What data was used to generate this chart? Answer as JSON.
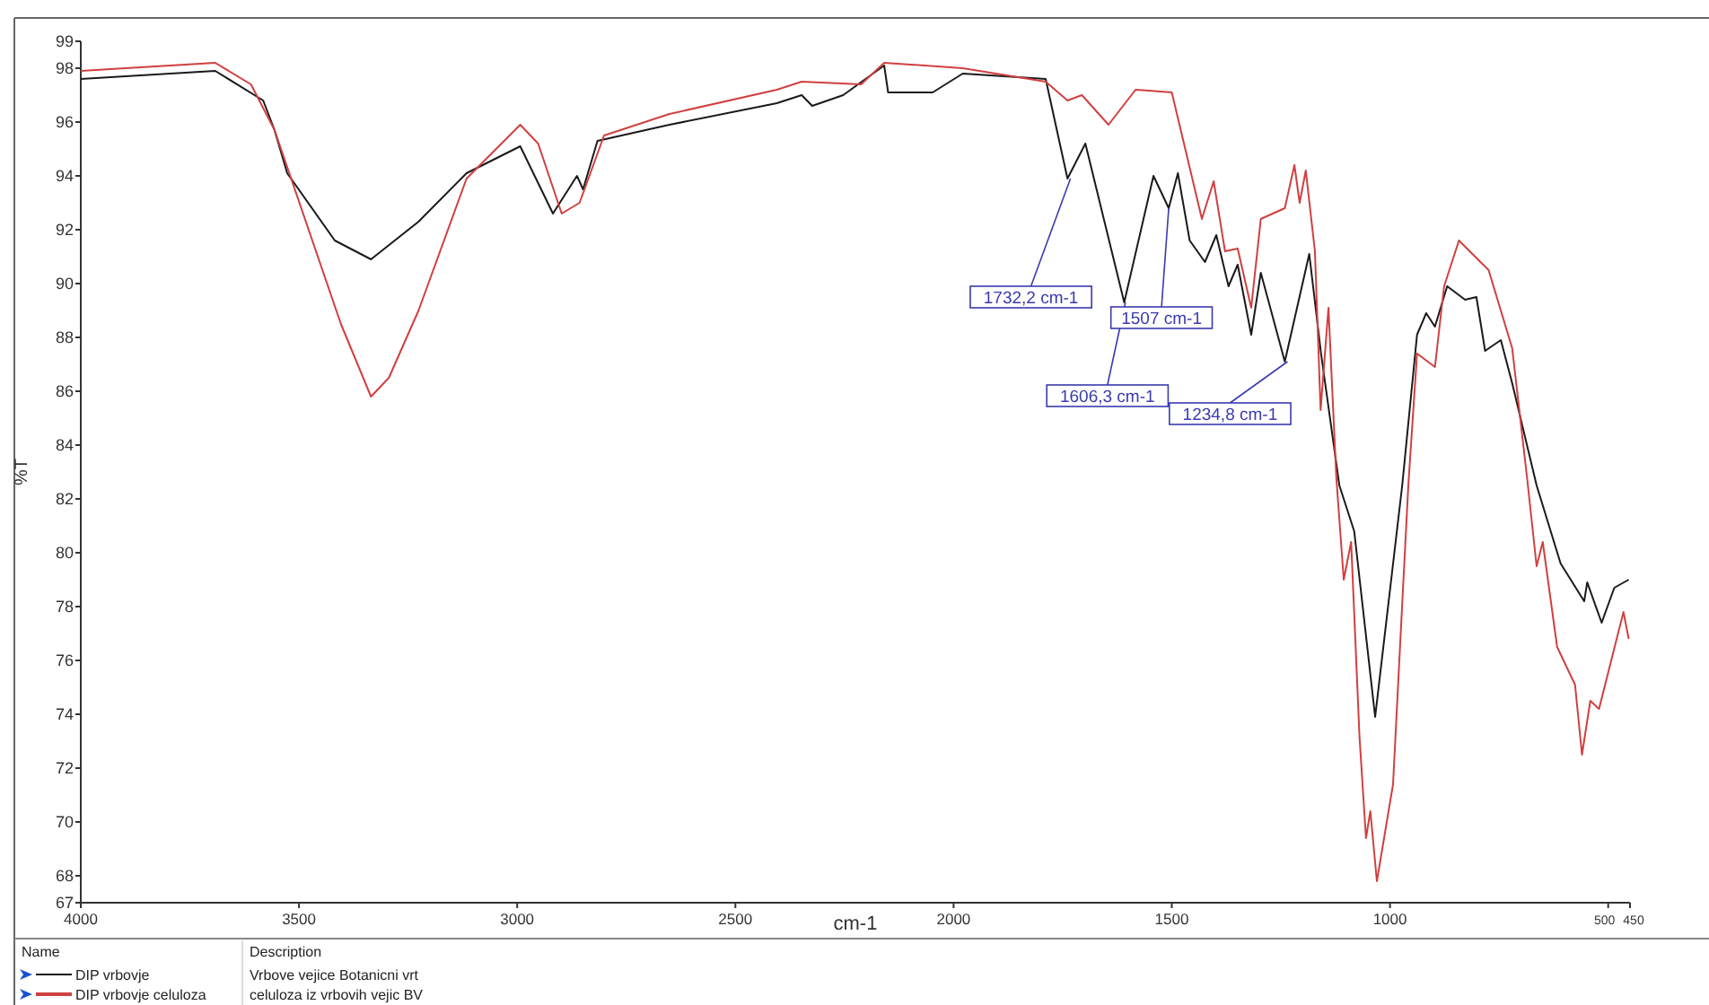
{
  "chart_data": {
    "type": "line",
    "xlabel": "cm-1",
    "ylabel": "%T",
    "legend_title": "Name",
    "legend": "bottom",
    "xlim": [
      4000,
      450
    ],
    "ylim": [
      67,
      99
    ],
    "xticks": [
      4000,
      3500,
      3000,
      2500,
      2000,
      1500,
      1000,
      500,
      450
    ],
    "yticks": [
      67,
      68,
      70,
      72,
      74,
      76,
      78,
      80,
      82,
      84,
      86,
      88,
      90,
      92,
      94,
      96,
      98,
      99
    ],
    "series": [
      {
        "name": "DIP vrbovje",
        "color": "#1a1a1a",
        "x": [
          4000,
          3692,
          3582,
          3556,
          3527,
          3418,
          3335,
          3226,
          3116,
          2993,
          2918,
          2863,
          2849,
          2816,
          2651,
          2405,
          2348,
          2324,
          2253,
          2159,
          2150,
          2048,
          1979,
          1789,
          1739,
          1698,
          1609,
          1542,
          1507,
          1486,
          1459,
          1424,
          1398,
          1370,
          1349,
          1318,
          1296,
          1241,
          1185,
          1158,
          1116,
          1082,
          1034,
          972,
          938,
          917,
          897,
          869,
          828,
          802,
          782,
          746,
          720,
          664,
          609,
          555,
          548,
          515,
          486,
          453
        ],
        "values": [
          97.6,
          97.9,
          96.8,
          95.7,
          94.1,
          91.6,
          90.9,
          92.3,
          94.1,
          95.1,
          92.6,
          94.0,
          93.5,
          95.3,
          95.9,
          96.7,
          97.0,
          96.6,
          97.0,
          98.1,
          97.1,
          97.1,
          97.8,
          97.6,
          93.9,
          95.2,
          89.3,
          94.0,
          92.8,
          94.1,
          91.6,
          90.8,
          91.8,
          89.9,
          90.7,
          88.1,
          90.4,
          87.1,
          91.1,
          87.4,
          82.5,
          80.8,
          73.9,
          82.5,
          88.1,
          88.9,
          88.4,
          89.9,
          89.4,
          89.5,
          87.5,
          87.9,
          86.3,
          82.5,
          79.6,
          78.2,
          78.9,
          77.4,
          78.7,
          79.0
        ]
      },
      {
        "name": "DIP vrbovje celuloza",
        "color": "#d04040",
        "x": [
          4000,
          3692,
          3610,
          3556,
          3404,
          3335,
          3294,
          3226,
          3116,
          2993,
          2952,
          2898,
          2857,
          2801,
          2651,
          2405,
          2348,
          2212,
          2159,
          1979,
          1789,
          1739,
          1706,
          1645,
          1583,
          1500,
          1431,
          1404,
          1378,
          1349,
          1318,
          1296,
          1241,
          1219,
          1207,
          1193,
          1172,
          1159,
          1141,
          1123,
          1106,
          1089,
          1070,
          1055,
          1045,
          1030,
          993,
          972,
          958,
          938,
          897,
          876,
          842,
          774,
          720,
          686,
          664,
          650,
          617,
          576,
          560,
          541,
          521,
          465,
          453
        ],
        "values": [
          97.9,
          98.2,
          97.4,
          95.7,
          88.5,
          85.8,
          86.5,
          89.0,
          93.9,
          95.9,
          95.2,
          92.6,
          93.0,
          95.5,
          96.3,
          97.2,
          97.5,
          97.4,
          98.2,
          98.0,
          97.5,
          96.8,
          97.0,
          95.9,
          97.2,
          97.1,
          92.4,
          93.8,
          91.2,
          91.3,
          89.1,
          92.4,
          92.8,
          94.4,
          93.0,
          94.2,
          91.2,
          85.3,
          89.1,
          82.8,
          79.0,
          80.4,
          73.2,
          69.4,
          70.4,
          67.8,
          71.4,
          78.1,
          82.5,
          87.4,
          86.9,
          89.9,
          91.6,
          90.5,
          87.6,
          82.8,
          79.5,
          80.4,
          76.5,
          75.1,
          72.5,
          74.5,
          74.2,
          77.8,
          76.8
        ]
      }
    ],
    "annotations": [
      {
        "text": "1732,2 cm-1",
        "x": 1732.2,
        "y": 93.9
      },
      {
        "text": "1606,3 cm-1",
        "x": 1606.3,
        "y": 89.3
      },
      {
        "text": "1507 cm-1",
        "x": 1507,
        "y": 92.8
      },
      {
        "text": "1234,8 cm-1",
        "x": 1234.8,
        "y": 87.1
      },
      "Description",
      "Vrbove vejice Botanicni vrt",
      "celuloza iz vrbovih vejic BV"
    ]
  }
}
